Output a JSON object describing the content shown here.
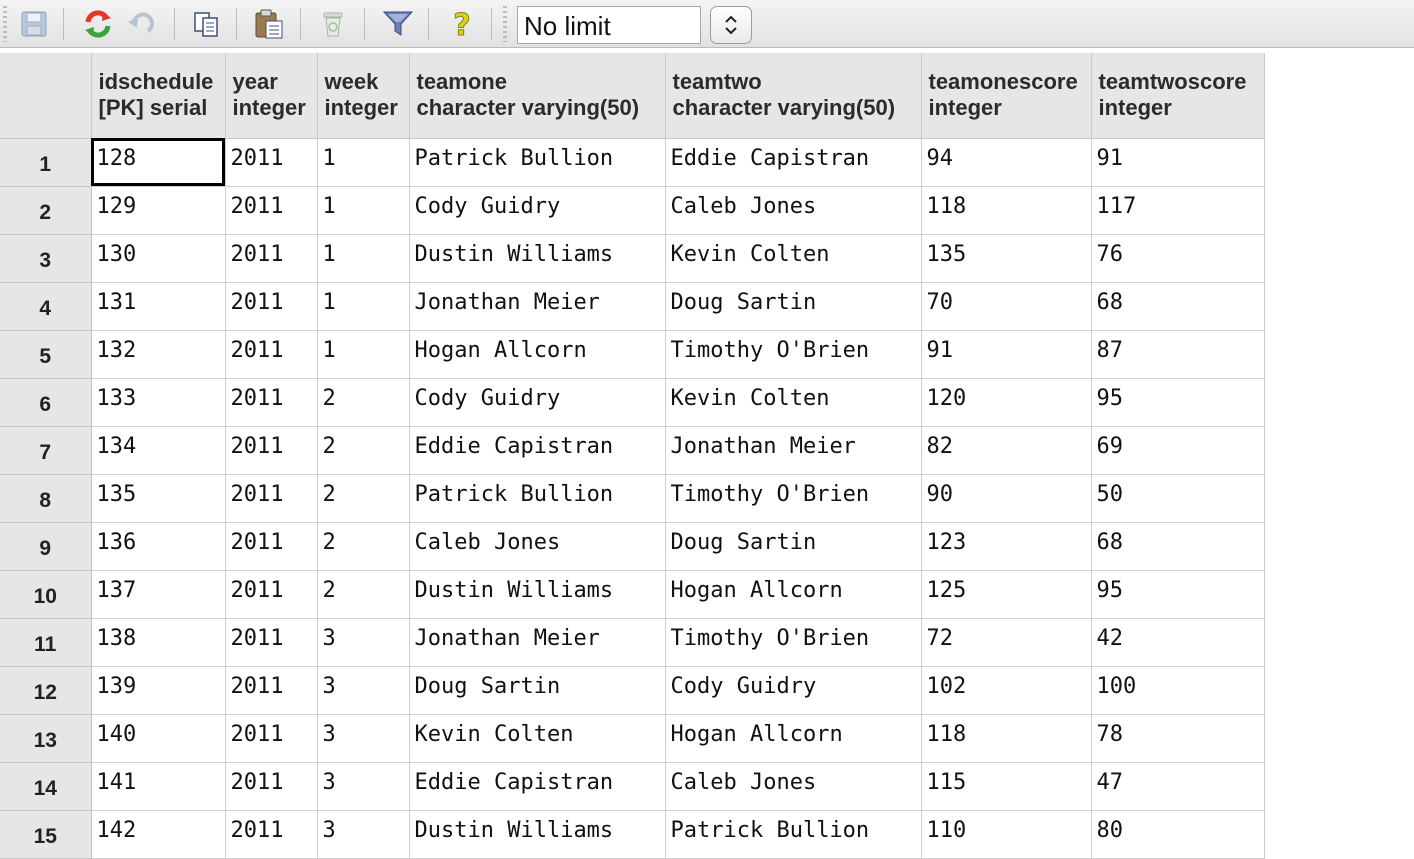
{
  "toolbar": {
    "icons": [
      "save-icon",
      "refresh-icon",
      "undo-icon",
      "copy-icon",
      "paste-icon",
      "delete-icon",
      "filter-icon",
      "help-icon"
    ],
    "limit_value": "No limit"
  },
  "grid": {
    "columns": [
      {
        "name": "idschedule",
        "type": "[PK] serial"
      },
      {
        "name": "year",
        "type": "integer"
      },
      {
        "name": "week",
        "type": "integer"
      },
      {
        "name": "teamone",
        "type": "character varying(50)"
      },
      {
        "name": "teamtwo",
        "type": "character varying(50)"
      },
      {
        "name": "teamonescore",
        "type": "integer"
      },
      {
        "name": "teamtwoscore",
        "type": "integer"
      }
    ],
    "rows": [
      {
        "num": "1",
        "cells": [
          "128",
          "2011",
          "1",
          "Patrick Bullion",
          "Eddie Capistran",
          "94",
          "91"
        ]
      },
      {
        "num": "2",
        "cells": [
          "129",
          "2011",
          "1",
          "Cody Guidry",
          "Caleb Jones",
          "118",
          "117"
        ]
      },
      {
        "num": "3",
        "cells": [
          "130",
          "2011",
          "1",
          "Dustin Williams",
          "Kevin Colten",
          "135",
          "76"
        ]
      },
      {
        "num": "4",
        "cells": [
          "131",
          "2011",
          "1",
          "Jonathan Meier",
          "Doug Sartin",
          "70",
          "68"
        ]
      },
      {
        "num": "5",
        "cells": [
          "132",
          "2011",
          "1",
          "Hogan Allcorn",
          "Timothy O'Brien",
          "91",
          "87"
        ]
      },
      {
        "num": "6",
        "cells": [
          "133",
          "2011",
          "2",
          "Cody Guidry",
          "Kevin Colten",
          "120",
          "95"
        ]
      },
      {
        "num": "7",
        "cells": [
          "134",
          "2011",
          "2",
          "Eddie Capistran",
          "Jonathan Meier",
          "82",
          "69"
        ]
      },
      {
        "num": "8",
        "cells": [
          "135",
          "2011",
          "2",
          "Patrick Bullion",
          "Timothy O'Brien",
          "90",
          "50"
        ]
      },
      {
        "num": "9",
        "cells": [
          "136",
          "2011",
          "2",
          "Caleb Jones",
          "Doug Sartin",
          "123",
          "68"
        ]
      },
      {
        "num": "10",
        "cells": [
          "137",
          "2011",
          "2",
          "Dustin Williams",
          "Hogan Allcorn",
          "125",
          "95"
        ]
      },
      {
        "num": "11",
        "cells": [
          "138",
          "2011",
          "3",
          "Jonathan Meier",
          "Timothy O'Brien",
          "72",
          "42"
        ]
      },
      {
        "num": "12",
        "cells": [
          "139",
          "2011",
          "3",
          "Doug Sartin",
          "Cody Guidry",
          "102",
          "100"
        ]
      },
      {
        "num": "13",
        "cells": [
          "140",
          "2011",
          "3",
          "Kevin Colten",
          "Hogan Allcorn",
          "118",
          "78"
        ]
      },
      {
        "num": "14",
        "cells": [
          "141",
          "2011",
          "3",
          "Eddie Capistran",
          "Caleb Jones",
          "115",
          "47"
        ]
      },
      {
        "num": "15",
        "cells": [
          "142",
          "2011",
          "3",
          "Dustin Williams",
          "Patrick Bullion",
          "110",
          "80"
        ]
      }
    ]
  }
}
